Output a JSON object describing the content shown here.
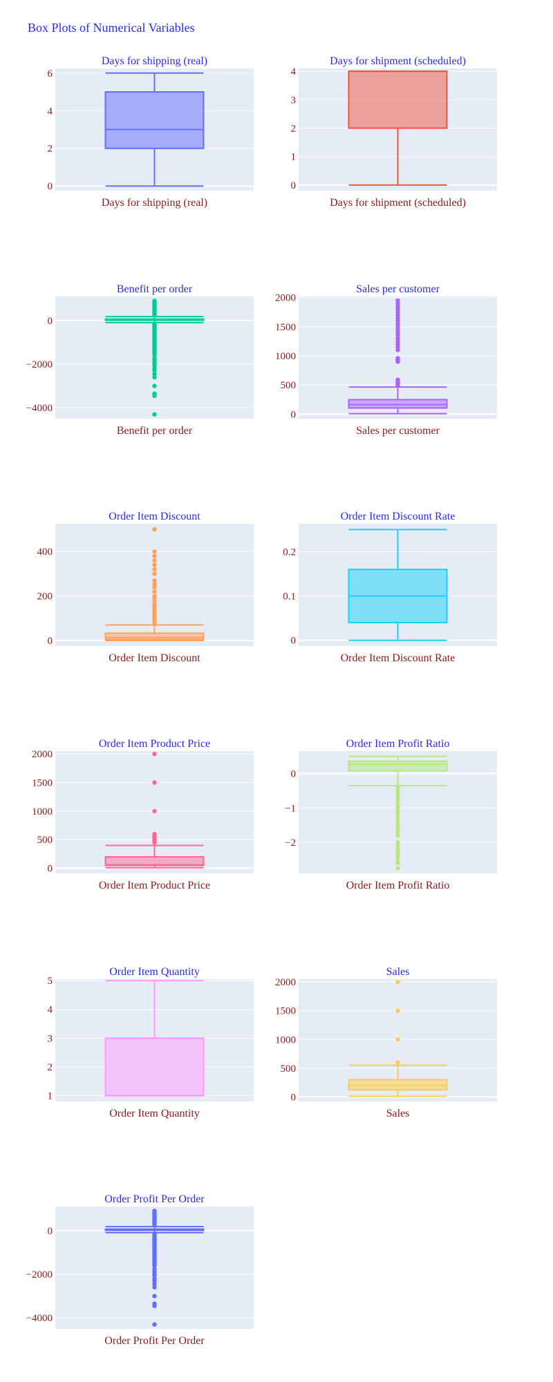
{
  "title": "Box Plots of Numerical Variables",
  "chart_data": [
    {
      "type": "box",
      "title": "Days for shipping (real)",
      "xlabel": "Days for shipping (real)",
      "color": "#636efa",
      "ylim": [
        -0.25,
        6.25
      ],
      "yticks": [
        0,
        2,
        4,
        6
      ],
      "tick_labels": [
        "0",
        "2",
        "4",
        "6"
      ],
      "whisker_low": 0,
      "q1": 2,
      "median": 3,
      "q3": 5,
      "whisker_high": 6,
      "outliers": []
    },
    {
      "type": "box",
      "title": "Days for shipment (scheduled)",
      "xlabel": "Days for shipment (scheduled)",
      "color": "#ef553b",
      "ylim": [
        -0.2,
        4.1
      ],
      "yticks": [
        0,
        1,
        2,
        3,
        4
      ],
      "tick_labels": [
        "0",
        "1",
        "2",
        "3",
        "4"
      ],
      "whisker_low": 0,
      "q1": 2,
      "median": 4,
      "q3": 4,
      "whisker_high": 4,
      "outliers": []
    },
    {
      "type": "box",
      "title": "Benefit per order",
      "xlabel": "Benefit per order",
      "color": "#00cc96",
      "ylim": [
        -4500,
        1100
      ],
      "yticks": [
        -4000,
        -2000,
        0
      ],
      "tick_labels": [
        "−4000",
        "−2000",
        "0"
      ],
      "whisker_low": -100,
      "q1": 7,
      "median": 32,
      "q3": 65,
      "whisker_high": 180,
      "outliers": [
        250,
        300,
        350,
        400,
        450,
        500,
        550,
        600,
        650,
        700,
        750,
        800,
        850,
        900,
        -150,
        -200,
        -250,
        -300,
        -350,
        -400,
        -450,
        -500,
        -550,
        -600,
        -650,
        -700,
        -750,
        -800,
        -850,
        -900,
        -950,
        -1000,
        -1050,
        -1100,
        -1150,
        -1200,
        -1250,
        -1300,
        -1350,
        -1400,
        -1450,
        -1500,
        -1550,
        -1600,
        -1750,
        -1850,
        -1950,
        -2050,
        -2200,
        -2300,
        -2450,
        -2600,
        -3000,
        -3350,
        -3450,
        -4300
      ]
    },
    {
      "type": "box",
      "title": "Sales per customer",
      "xlabel": "Sales per customer",
      "color": "#ab63fa",
      "ylim": [
        -80,
        2020
      ],
      "yticks": [
        0,
        500,
        1000,
        1500,
        2000
      ],
      "tick_labels": [
        "0",
        "500",
        "1000",
        "1500",
        "2000"
      ],
      "whisker_low": 7,
      "q1": 104,
      "median": 163,
      "q3": 248,
      "whisker_high": 465,
      "outliers": [
        490,
        510,
        530,
        550,
        570,
        590,
        900,
        920,
        940,
        960,
        1100,
        1150,
        1200,
        1250,
        1300,
        1350,
        1400,
        1450,
        1500,
        1550,
        1600,
        1650,
        1700,
        1750,
        1800,
        1850,
        1900,
        1950
      ]
    },
    {
      "type": "box",
      "title": "Order Item Discount",
      "xlabel": "Order Item Discount",
      "color": "#ffa15a",
      "ylim": [
        -25,
        525
      ],
      "yticks": [
        0,
        200,
        400
      ],
      "tick_labels": [
        "0",
        "200",
        "400"
      ],
      "whisker_low": 0,
      "q1": 5,
      "median": 14,
      "q3": 33,
      "whisker_high": 70,
      "outliers": [
        80,
        90,
        100,
        110,
        120,
        130,
        140,
        150,
        160,
        175,
        190,
        200,
        220,
        240,
        255,
        270,
        300,
        320,
        340,
        360,
        380,
        400,
        500
      ]
    },
    {
      "type": "box",
      "title": "Order Item Discount Rate",
      "xlabel": "Order Item Discount Rate",
      "color": "#19d3f3",
      "ylim": [
        -0.013,
        0.263
      ],
      "yticks": [
        0,
        0.1,
        0.2
      ],
      "tick_labels": [
        "0",
        "0.1",
        "0.2"
      ],
      "whisker_low": 0,
      "q1": 0.04,
      "median": 0.1,
      "q3": 0.16,
      "whisker_high": 0.25,
      "outliers": []
    },
    {
      "type": "box",
      "title": "Order Item Product Price",
      "xlabel": "Order Item Product Price",
      "color": "#ff6692",
      "ylim": [
        -90,
        2050
      ],
      "yticks": [
        0,
        500,
        1000,
        1500,
        2000
      ],
      "tick_labels": [
        "0",
        "500",
        "1000",
        "1500",
        "2000"
      ],
      "whisker_low": 10,
      "q1": 50,
      "median": 60,
      "q3": 200,
      "whisker_high": 400,
      "outliers": [
        450,
        470,
        500,
        530,
        560,
        600,
        1000,
        1500,
        2000
      ]
    },
    {
      "type": "box",
      "title": "Order Item Profit Ratio",
      "xlabel": "Order Item Profit Ratio",
      "color": "#b6e880",
      "ylim": [
        -2.9,
        0.65
      ],
      "yticks": [
        -2,
        -1,
        0
      ],
      "tick_labels": [
        "−2",
        "−1",
        "0"
      ],
      "whisker_low": -0.35,
      "q1": 0.08,
      "median": 0.27,
      "q3": 0.36,
      "whisker_high": 0.5,
      "outliers": [
        -0.4,
        -0.5,
        -0.6,
        -0.7,
        -0.8,
        -0.9,
        -1.0,
        -1.1,
        -1.2,
        -1.3,
        -1.4,
        -1.5,
        -1.6,
        -1.7,
        -1.8,
        -2.0,
        -2.1,
        -2.2,
        -2.3,
        -2.4,
        -2.5,
        -2.6,
        -2.75
      ]
    },
    {
      "type": "box",
      "title": "Order Item Quantity",
      "xlabel": "Order Item Quantity",
      "color": "#ff97ff",
      "ylim": [
        0.8,
        5.05
      ],
      "yticks": [
        1,
        2,
        3,
        4,
        5
      ],
      "tick_labels": [
        "1",
        "2",
        "3",
        "4",
        "5"
      ],
      "whisker_low": 1,
      "q1": 1,
      "median": 1,
      "q3": 3,
      "whisker_high": 5,
      "outliers": []
    },
    {
      "type": "box",
      "title": "Sales",
      "xlabel": "Sales",
      "color": "#fecb52",
      "ylim": [
        -80,
        2050
      ],
      "yticks": [
        0,
        500,
        1000,
        1500,
        2000
      ],
      "tick_labels": [
        "0",
        "500",
        "1000",
        "1500",
        "2000"
      ],
      "whisker_low": 10,
      "q1": 120,
      "median": 200,
      "q3": 300,
      "whisker_high": 550,
      "outliers": [
        600,
        1000,
        1500,
        2000
      ]
    },
    {
      "type": "box",
      "title": "Order Profit Per Order",
      "xlabel": "Order Profit Per Order",
      "color": "#636efa",
      "ylim": [
        -4500,
        1100
      ],
      "yticks": [
        -4000,
        -2000,
        0
      ],
      "tick_labels": [
        "−4000",
        "−2000",
        "0"
      ],
      "whisker_low": -100,
      "q1": 7,
      "median": 32,
      "q3": 65,
      "whisker_high": 180,
      "outliers": [
        250,
        300,
        350,
        400,
        450,
        500,
        550,
        600,
        650,
        700,
        750,
        800,
        850,
        900,
        -150,
        -200,
        -250,
        -300,
        -350,
        -400,
        -450,
        -500,
        -550,
        -600,
        -650,
        -700,
        -750,
        -800,
        -850,
        -900,
        -950,
        -1000,
        -1050,
        -1100,
        -1150,
        -1200,
        -1250,
        -1300,
        -1350,
        -1400,
        -1450,
        -1500,
        -1550,
        -1600,
        -1750,
        -1850,
        -1950,
        -2050,
        -2200,
        -2300,
        -2450,
        -2600,
        -3000,
        -3350,
        -3450,
        -4300
      ]
    }
  ]
}
